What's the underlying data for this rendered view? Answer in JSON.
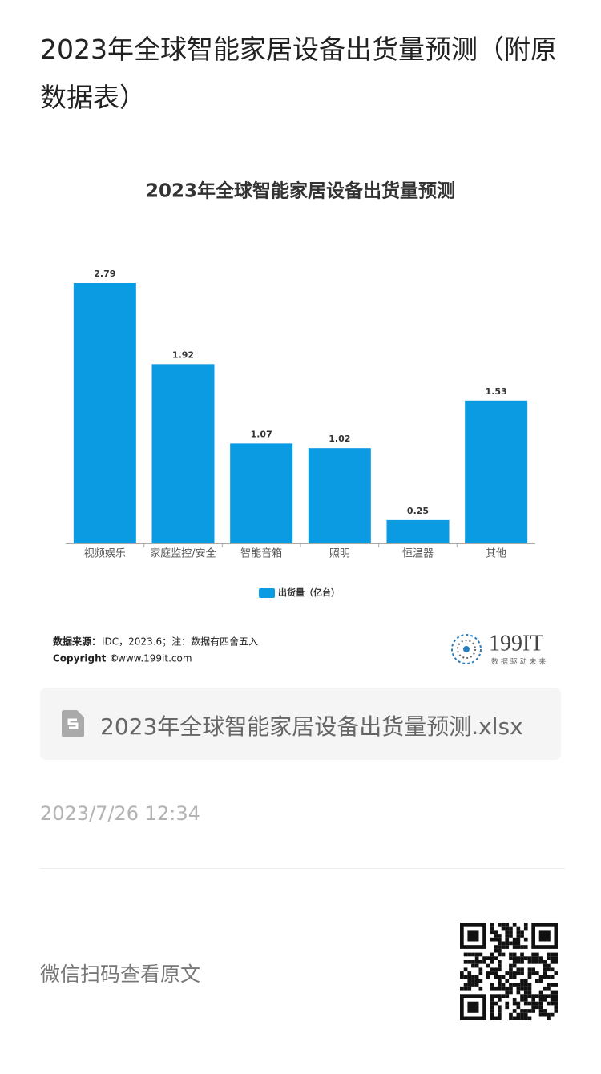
{
  "page": {
    "title": "2023年全球智能家居设备出货量预测（附原数据表）",
    "attachment": "2023年全球智能家居设备出货量预测.xlsx",
    "date": "2023/7/26 12:34",
    "qr_label": "微信扫码查看原文"
  },
  "chart_data": {
    "type": "bar",
    "title": "2023年全球智能家居设备出货量预测",
    "categories": [
      "视频娱乐",
      "家庭监控/安全",
      "智能音箱",
      "照明",
      "恒温器",
      "其他"
    ],
    "series": [
      {
        "name": "出货量（亿台）",
        "color": "#0a9be3",
        "values": [
          2.79,
          1.92,
          1.07,
          1.02,
          0.25,
          1.53
        ]
      }
    ],
    "source_label": "数据来源：",
    "source": "IDC，2023.6；注：数据有四舍五入",
    "copyright_label": "Copyright ©",
    "copyright": "www.199it.com",
    "logo": "199IT",
    "logo_slogan": "数 据 驱 动 未 来"
  }
}
